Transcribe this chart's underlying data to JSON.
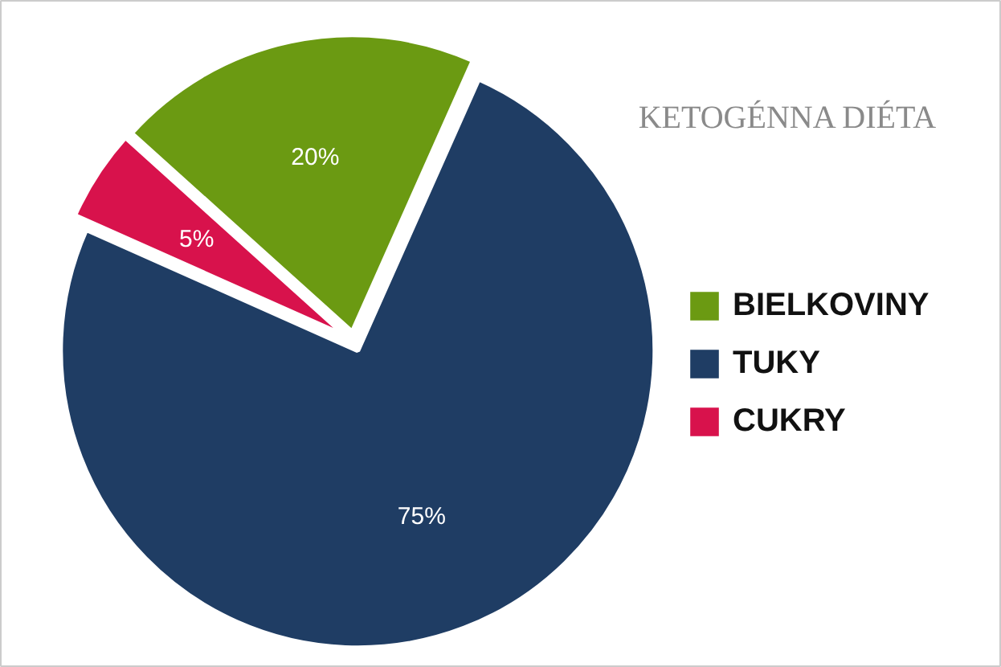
{
  "chart_data": {
    "type": "pie",
    "title": "KETOGÉNNA DIÉTA",
    "categories": [
      "BIELKOVINY",
      "TUKY",
      "CUKRY"
    ],
    "values": [
      20,
      75,
      5
    ],
    "colors": [
      "#6b9a12",
      "#1f3d64",
      "#d8124c"
    ],
    "value_labels": [
      "20%",
      "75%",
      "5%"
    ],
    "legend": "right"
  }
}
